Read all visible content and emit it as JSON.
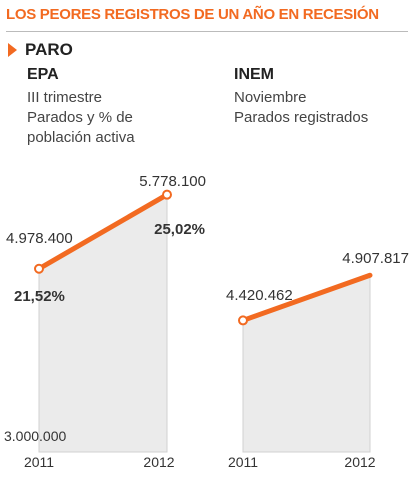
{
  "headline": "LOS PEORES REGISTROS DE UN AÑO EN RECESIÓN",
  "section": "PARO",
  "colors": {
    "accent": "#f26a21",
    "area": "#ebebeb",
    "frame": "#d0d0d0"
  },
  "chart_data": [
    {
      "type": "line",
      "title": "EPA",
      "subtitle_lines": [
        "III trimestre",
        "Parados y % de",
        "población activa"
      ],
      "categories": [
        "2011",
        "2012"
      ],
      "series": [
        {
          "values": [
            4978400,
            5778100
          ]
        }
      ],
      "value_labels": [
        "4.978.400",
        "5.778.100"
      ],
      "percent_labels": [
        "21,52%",
        "25,02%"
      ],
      "baseline_label": "3.000.000",
      "ylim": [
        3000000,
        5850000
      ],
      "fill_area": true
    },
    {
      "type": "line",
      "title": "INEM",
      "subtitle_lines": [
        "Noviembre",
        "Parados registrados"
      ],
      "categories": [
        "2011",
        "2012"
      ],
      "series": [
        {
          "values": [
            4420462,
            4907817
          ]
        }
      ],
      "value_labels": [
        "4.420.462",
        "4.907.817"
      ],
      "ylim": [
        3000000,
        5850000
      ],
      "fill_area": true
    }
  ]
}
